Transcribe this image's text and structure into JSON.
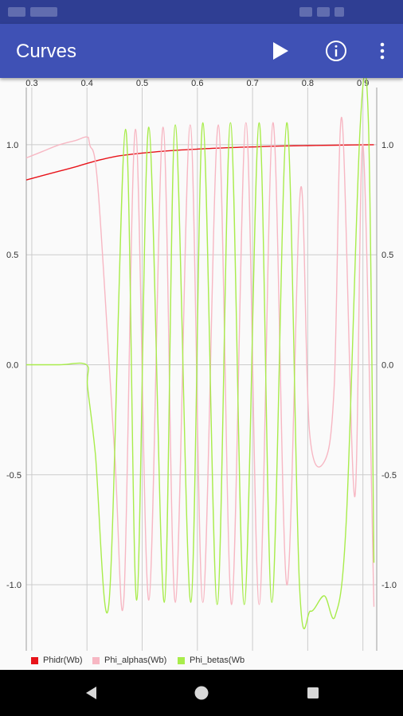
{
  "app_bar": {
    "title": "Curves",
    "play_icon": "play-icon",
    "info_icon": "info-icon",
    "menu_icon": "more-vert-icon"
  },
  "status_bar": {
    "icons": [
      "notification-icon",
      "notification-icon",
      "wifi-icon",
      "signal-icon",
      "battery-icon"
    ]
  },
  "nav_bar": {
    "icons": [
      "back-icon",
      "home-icon",
      "recents-icon"
    ]
  },
  "colors": {
    "app_bar": "#3f51b5",
    "status_bar": "#2f3e93",
    "grid": "#cccccc"
  },
  "chart_data": {
    "type": "line",
    "title": "",
    "xlabel": "",
    "ylabel": "",
    "xlim": [
      0.29,
      0.925
    ],
    "ylim": [
      -1.3,
      1.26
    ],
    "x_ticks": [
      "0.3",
      "0.4",
      "0.5",
      "0.6",
      "0.7",
      "0.8",
      "0.9"
    ],
    "y_ticks": [
      "1.0",
      "0.5",
      "0.0",
      "-0.5",
      "-1.0"
    ],
    "grid": true,
    "legend_position": "bottom-left",
    "series": [
      {
        "name": "Phidr(Wb)",
        "color": "#e8131a",
        "x": [
          0.29,
          0.32,
          0.35,
          0.38,
          0.4,
          0.43,
          0.46,
          0.5,
          0.55,
          0.6,
          0.65,
          0.7,
          0.75,
          0.8,
          0.85,
          0.92
        ],
        "y": [
          0.84,
          0.86,
          0.88,
          0.9,
          0.915,
          0.935,
          0.95,
          0.962,
          0.973,
          0.98,
          0.986,
          0.99,
          0.994,
          0.996,
          0.998,
          1.0
        ]
      },
      {
        "name": "Phi_alphas(Wb)",
        "color": "#f7b7c3",
        "x": [
          0.29,
          0.32,
          0.35,
          0.38,
          0.4,
          0.405,
          0.42,
          0.45,
          0.467,
          0.488,
          0.512,
          0.538,
          0.56,
          0.587,
          0.61,
          0.638,
          0.662,
          0.688,
          0.712,
          0.737,
          0.762,
          0.787,
          0.803,
          0.83,
          0.848,
          0.862,
          0.885,
          0.9,
          0.92
        ],
        "y": [
          0.94,
          0.97,
          1.0,
          1.02,
          1.035,
          1.0,
          0.8,
          -0.4,
          -1.06,
          1.07,
          -1.07,
          1.08,
          -1.08,
          1.09,
          -1.08,
          1.09,
          -1.09,
          1.1,
          -1.09,
          1.1,
          -1.0,
          0.8,
          -0.3,
          -0.44,
          -0.1,
          1.12,
          -0.6,
          1.0,
          -1.1
        ]
      },
      {
        "name": "Phi_betas(Wb",
        "color": "#a8ec4b",
        "x": [
          0.29,
          0.35,
          0.399,
          0.401,
          0.415,
          0.44,
          0.47,
          0.49,
          0.512,
          0.54,
          0.56,
          0.588,
          0.61,
          0.636,
          0.66,
          0.685,
          0.712,
          0.735,
          0.762,
          0.785,
          0.805,
          0.83,
          0.85,
          0.87,
          0.895,
          0.91,
          0.92
        ],
        "y": [
          0.0,
          0.0,
          0.0,
          -0.1,
          -0.4,
          -1.08,
          1.07,
          -1.07,
          1.08,
          -1.08,
          1.09,
          -1.08,
          1.1,
          -1.09,
          1.1,
          -1.09,
          1.1,
          -1.08,
          1.1,
          -1.0,
          -1.12,
          -1.05,
          -1.14,
          -0.7,
          1.08,
          1.1,
          -0.9
        ]
      }
    ]
  }
}
